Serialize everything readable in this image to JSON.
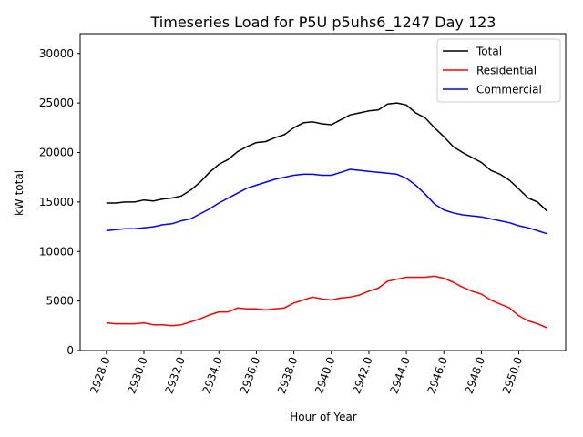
{
  "chart_data": {
    "type": "line",
    "title": "Timeseries Load for P5U p5uhs6_1247  Day 123",
    "xlabel": "Hour of Year",
    "ylabel": "kW total",
    "xlim": [
      2926.6,
      2952.5
    ],
    "ylim": [
      0,
      32000
    ],
    "xticks": [
      2928,
      2930,
      2932,
      2934,
      2936,
      2938,
      2940,
      2942,
      2944,
      2946,
      2948,
      2950
    ],
    "xtick_labels": [
      "2928.0",
      "2930.0",
      "2932.0",
      "2934.0",
      "2936.0",
      "2938.0",
      "2940.0",
      "2942.0",
      "2944.0",
      "2946.0",
      "2948.0",
      "2950.0"
    ],
    "yticks": [
      0,
      5000,
      10000,
      15000,
      20000,
      25000,
      30000
    ],
    "ytick_labels": [
      "0",
      "5000",
      "10000",
      "15000",
      "20000",
      "25000",
      "30000"
    ],
    "legend_position": "top-right",
    "series": [
      {
        "name": "Total",
        "color": "#000000",
        "x": [
          2928,
          2928.5,
          2929,
          2929.5,
          2930,
          2930.5,
          2931,
          2931.5,
          2932,
          2932.5,
          2933,
          2933.5,
          2934,
          2934.5,
          2935,
          2935.5,
          2936,
          2936.5,
          2937,
          2937.5,
          2938,
          2938.5,
          2939,
          2939.5,
          2940,
          2940.5,
          2941,
          2941.5,
          2942,
          2942.5,
          2943,
          2943.5,
          2944,
          2944.5,
          2945,
          2945.5,
          2946,
          2946.5,
          2947,
          2947.5,
          2948,
          2948.5,
          2949,
          2949.5,
          2950,
          2950.5,
          2951,
          2951.5
        ],
        "values": [
          14900,
          14900,
          15000,
          15000,
          15200,
          15100,
          15300,
          15400,
          15600,
          16200,
          17000,
          18000,
          18800,
          19300,
          20100,
          20600,
          21000,
          21100,
          21500,
          21800,
          22500,
          23000,
          23100,
          22900,
          22800,
          23300,
          23800,
          24000,
          24200,
          24300,
          24900,
          25000,
          24800,
          24000,
          23500,
          22500,
          21600,
          20600,
          20000,
          19500,
          19000,
          18200,
          17800,
          17200,
          16300,
          15400,
          15000,
          14100
        ]
      },
      {
        "name": "Residential",
        "color": "#ff0000",
        "x": [
          2928,
          2928.5,
          2929,
          2929.5,
          2930,
          2930.5,
          2931,
          2931.5,
          2932,
          2932.5,
          2933,
          2933.5,
          2934,
          2934.5,
          2935,
          2935.5,
          2936,
          2936.5,
          2937,
          2937.5,
          2938,
          2938.5,
          2939,
          2939.5,
          2940,
          2940.5,
          2941,
          2941.5,
          2942,
          2942.5,
          2943,
          2943.5,
          2944,
          2944.5,
          2945,
          2945.5,
          2946,
          2946.5,
          2947,
          2947.5,
          2948,
          2948.5,
          2949,
          2949.5,
          2950,
          2950.5,
          2951,
          2951.5
        ],
        "values": [
          2800,
          2700,
          2700,
          2700,
          2800,
          2600,
          2600,
          2500,
          2600,
          2900,
          3200,
          3600,
          3900,
          3900,
          4300,
          4200,
          4200,
          4100,
          4200,
          4300,
          4800,
          5100,
          5400,
          5200,
          5100,
          5300,
          5400,
          5600,
          6000,
          6300,
          7000,
          7200,
          7400,
          7400,
          7400,
          7500,
          7300,
          6900,
          6400,
          6000,
          5700,
          5100,
          4700,
          4300,
          3500,
          3000,
          2700,
          2300
        ]
      },
      {
        "name": "Commercial",
        "color": "#0000ff",
        "x": [
          2928,
          2928.5,
          2929,
          2929.5,
          2930,
          2930.5,
          2931,
          2931.5,
          2932,
          2932.5,
          2933,
          2933.5,
          2934,
          2934.5,
          2935,
          2935.5,
          2936,
          2936.5,
          2937,
          2937.5,
          2938,
          2938.5,
          2939,
          2939.5,
          2940,
          2940.5,
          2941,
          2941.5,
          2942,
          2942.5,
          2943,
          2943.5,
          2944,
          2944.5,
          2945,
          2945.5,
          2946,
          2946.5,
          2947,
          2947.5,
          2948,
          2948.5,
          2949,
          2949.5,
          2950,
          2950.5,
          2951,
          2951.5
        ],
        "values": [
          12100,
          12200,
          12300,
          12300,
          12400,
          12500,
          12700,
          12800,
          13100,
          13300,
          13800,
          14300,
          14900,
          15400,
          15900,
          16400,
          16700,
          17000,
          17300,
          17500,
          17700,
          17800,
          17800,
          17700,
          17700,
          18000,
          18300,
          18200,
          18100,
          18000,
          17900,
          17800,
          17400,
          16700,
          15800,
          14800,
          14200,
          13900,
          13700,
          13600,
          13500,
          13300,
          13100,
          12900,
          12600,
          12400,
          12100,
          11800
        ]
      }
    ]
  }
}
